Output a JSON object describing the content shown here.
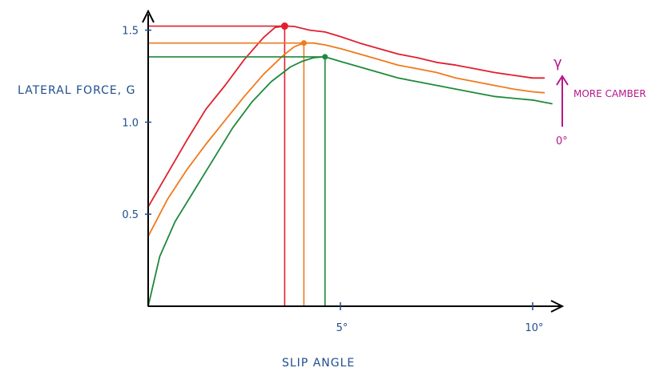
{
  "chart_data": {
    "type": "line",
    "title": "",
    "xlabel": "SLIP ANGLE",
    "ylabel": "LATERAL FORCE, G",
    "xlim": [
      0,
      10.7
    ],
    "ylim": [
      0,
      1.55
    ],
    "y_ticks": [
      {
        "value": 0.5,
        "label": "0.5"
      },
      {
        "value": 1.0,
        "label": "1.0"
      },
      {
        "value": 1.5,
        "label": "1.5"
      }
    ],
    "x_ticks": [
      {
        "value": 5,
        "label": "5°"
      },
      {
        "value": 10,
        "label": "10°"
      }
    ],
    "grid": false,
    "series": [
      {
        "color": "#e0202e",
        "x": [
          0,
          0.5,
          1.0,
          1.5,
          2.0,
          2.5,
          3.0,
          3.3,
          3.55,
          3.8,
          4.2,
          4.6,
          5.0,
          5.5,
          6.0,
          6.5,
          7.0,
          7.5,
          8.0,
          8.5,
          9.0,
          9.5,
          10.0,
          10.3
        ],
        "y": [
          0.54,
          0.72,
          0.9,
          1.07,
          1.2,
          1.34,
          1.46,
          1.515,
          1.522,
          1.52,
          1.5,
          1.49,
          1.465,
          1.43,
          1.4,
          1.37,
          1.35,
          1.325,
          1.31,
          1.29,
          1.27,
          1.255,
          1.24,
          1.24
        ],
        "peak": {
          "x": 3.55,
          "y": 1.522
        }
      },
      {
        "color": "#f07a1c",
        "x": [
          0,
          0.5,
          1.0,
          1.5,
          2.0,
          2.5,
          3.0,
          3.5,
          3.8,
          4.05,
          4.3,
          4.6,
          5.0,
          5.5,
          6.0,
          6.5,
          7.0,
          7.5,
          8.0,
          8.5,
          9.0,
          9.5,
          10.0,
          10.3
        ],
        "y": [
          0.38,
          0.58,
          0.74,
          0.88,
          1.01,
          1.14,
          1.26,
          1.36,
          1.41,
          1.43,
          1.43,
          1.42,
          1.4,
          1.37,
          1.34,
          1.31,
          1.29,
          1.27,
          1.24,
          1.22,
          1.2,
          1.18,
          1.165,
          1.16
        ],
        "peak": {
          "x": 4.05,
          "y": 1.43
        }
      },
      {
        "color": "#1e8a3c",
        "x": [
          0,
          0.3,
          0.7,
          1.2,
          1.7,
          2.2,
          2.7,
          3.2,
          3.7,
          4.0,
          4.3,
          4.6,
          5.0,
          5.5,
          6.0,
          6.5,
          7.0,
          7.5,
          8.0,
          8.5,
          9.0,
          9.5,
          10.0,
          10.5
        ],
        "y": [
          0.0,
          0.27,
          0.46,
          0.63,
          0.8,
          0.97,
          1.11,
          1.22,
          1.3,
          1.33,
          1.35,
          1.355,
          1.33,
          1.3,
          1.27,
          1.24,
          1.22,
          1.2,
          1.18,
          1.16,
          1.14,
          1.13,
          1.12,
          1.1
        ],
        "peak": {
          "x": 4.6,
          "y": 1.355
        }
      }
    ],
    "annotations": {
      "gamma_symbol": "γ",
      "more_camber": "MORE CAMBER",
      "zero_degree": "0°",
      "annotation_color": "#b5178c"
    },
    "axis_color": "#000000",
    "label_color": "#1f4e8c"
  }
}
